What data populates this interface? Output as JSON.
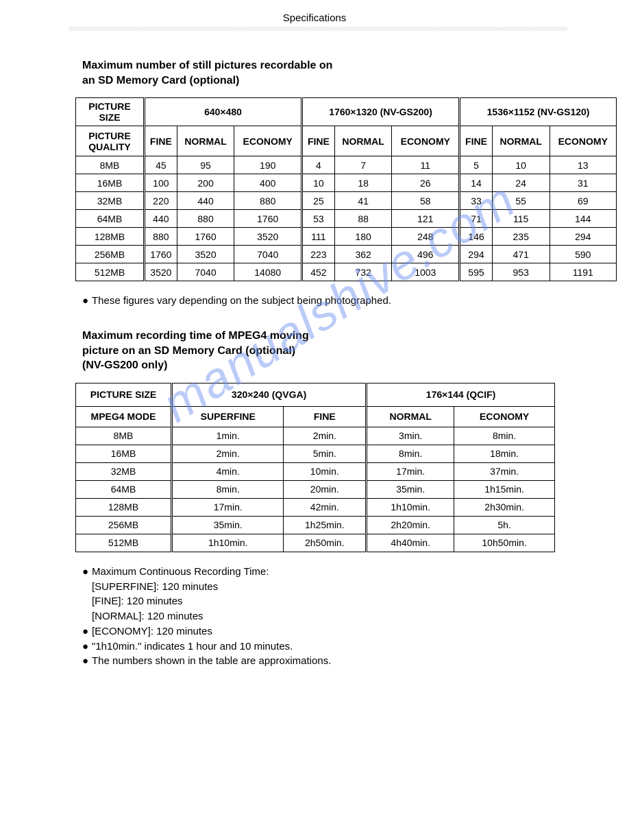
{
  "header": {
    "title": "Specifications"
  },
  "watermark_text": "manualshive.com",
  "section1": {
    "title_line1": "Maximum number of still pictures recordable on",
    "title_line2": "an SD Memory Card (optional)",
    "col_picture_size": "PICTURE SIZE",
    "col_picture_quality": "PICTURE QUALITY",
    "size_groups": [
      "640×480",
      "1760×1320 (NV-GS200)",
      "1536×1152 (NV-GS120)"
    ],
    "qualities": [
      "FINE",
      "NORMAL",
      "ECONOMY",
      "FINE",
      "NORMAL",
      "ECONOMY",
      "FINE",
      "NORMAL",
      "ECONOMY"
    ],
    "rows": [
      {
        "label": "8MB",
        "v": [
          "45",
          "95",
          "190",
          "4",
          "7",
          "11",
          "5",
          "10",
          "13"
        ]
      },
      {
        "label": "16MB",
        "v": [
          "100",
          "200",
          "400",
          "10",
          "18",
          "26",
          "14",
          "24",
          "31"
        ]
      },
      {
        "label": "32MB",
        "v": [
          "220",
          "440",
          "880",
          "25",
          "41",
          "58",
          "33",
          "55",
          "69"
        ]
      },
      {
        "label": "64MB",
        "v": [
          "440",
          "880",
          "1760",
          "53",
          "88",
          "121",
          "71",
          "115",
          "144"
        ]
      },
      {
        "label": "128MB",
        "v": [
          "880",
          "1760",
          "3520",
          "111",
          "180",
          "248",
          "146",
          "235",
          "294"
        ]
      },
      {
        "label": "256MB",
        "v": [
          "1760",
          "3520",
          "7040",
          "223",
          "362",
          "496",
          "294",
          "471",
          "590"
        ]
      },
      {
        "label": "512MB",
        "v": [
          "3520",
          "7040",
          "14080",
          "452",
          "732",
          "1003",
          "595",
          "953",
          "1191"
        ]
      }
    ],
    "note": "These figures vary depending on the subject being photographed."
  },
  "section2": {
    "title_line1": "Maximum recording time of MPEG4 moving",
    "title_line2": "picture on an SD Memory Card (optional)",
    "title_line3": "(NV-GS200 only)",
    "col_picture_size": "PICTURE SIZE",
    "col_mode": "MPEG4 MODE",
    "size_groups": [
      "320×240 (QVGA)",
      "176×144 (QCIF)"
    ],
    "modes": [
      "SUPERFINE",
      "FINE",
      "NORMAL",
      "ECONOMY"
    ],
    "rows": [
      {
        "label": "8MB",
        "v": [
          "1min.",
          "2min.",
          "3min.",
          "8min."
        ]
      },
      {
        "label": "16MB",
        "v": [
          "2min.",
          "5min.",
          "8min.",
          "18min."
        ]
      },
      {
        "label": "32MB",
        "v": [
          "4min.",
          "10min.",
          "17min.",
          "37min."
        ]
      },
      {
        "label": "64MB",
        "v": [
          "8min.",
          "20min.",
          "35min.",
          "1h15min."
        ]
      },
      {
        "label": "128MB",
        "v": [
          "17min.",
          "42min.",
          "1h10min.",
          "2h30min."
        ]
      },
      {
        "label": "256MB",
        "v": [
          "35min.",
          "1h25min.",
          "2h20min.",
          "5h."
        ]
      },
      {
        "label": "512MB",
        "v": [
          "1h10min.",
          "2h50min.",
          "4h40min.",
          "10h50min."
        ]
      }
    ],
    "notes": [
      "Maximum Continuous Recording Time:\n[SUPERFINE]:  120 minutes\n[FINE]:  120 minutes\n[NORMAL]:  120 minutes",
      "[ECONOMY]:  120 minutes",
      "\"1h10min.\" indicates 1 hour and 10 minutes.",
      "The numbers shown in the table are approximations."
    ]
  },
  "colors": {
    "text": "#000000",
    "background": "#ffffff",
    "border": "#000000",
    "watermark": "#6a8ef0",
    "header_rule": "#d0d0d0"
  },
  "typography": {
    "body_fontsize": 15,
    "title_fontsize": 16,
    "table_fontsize": 14,
    "title_weight": "bold"
  }
}
